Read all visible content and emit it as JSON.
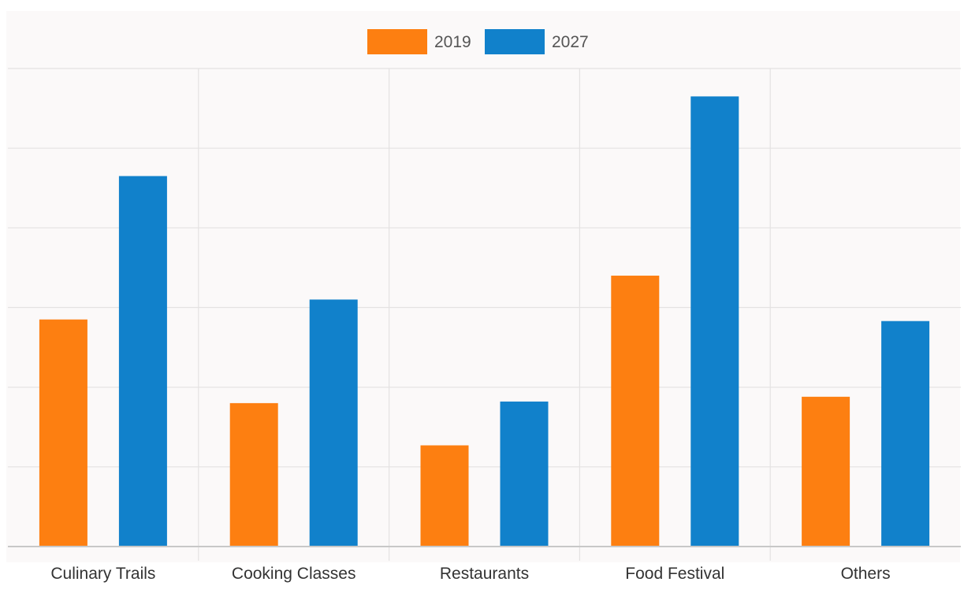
{
  "chart_data": {
    "type": "bar",
    "categories": [
      "Culinary Trails",
      "Cooking Classes",
      "Restaurants",
      "Food Festival",
      "Others"
    ],
    "series": [
      {
        "name": "2019",
        "color": "#fd7f11",
        "values": [
          2.85,
          1.8,
          1.27,
          3.4,
          1.88
        ]
      },
      {
        "name": "2027",
        "color": "#1181cb",
        "values": [
          4.65,
          3.1,
          1.82,
          5.65,
          2.83
        ]
      }
    ],
    "ylim": [
      0,
      6
    ],
    "yticks_shown": false,
    "grid": true,
    "legend_position": "top-center",
    "colors": {
      "plot_background": "#fbf9f9",
      "grid": "#e4e2e2",
      "axis": "#c8c8c8"
    }
  }
}
